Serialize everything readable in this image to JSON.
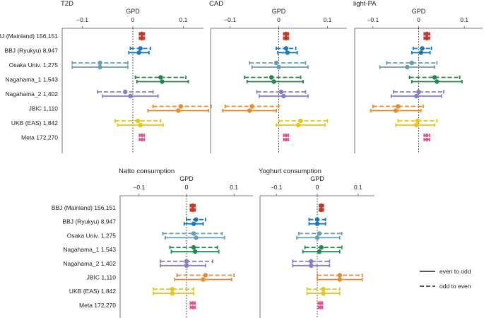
{
  "chart_data": {
    "type": "forest",
    "axis_label": "GPD",
    "row_labels": [
      "BBJ (Mainland) 156,151",
      "BBJ (Ryukyu) 8,947",
      "Osaka Univ. 1,275",
      "Nagahama_1 1,543",
      "Nagahama_2 1,402",
      "JBIC 1,110",
      "UKB (EAS) 1,842",
      "Meta 172,270"
    ],
    "colors": [
      "#c0392b",
      "#1f78b4",
      "#6a9db5",
      "#23864f",
      "#8b7cc4",
      "#e88a2e",
      "#e6c619",
      "#e8508f"
    ],
    "xlim": [
      -0.14,
      0.14
    ],
    "ticks": [
      -0.1,
      0,
      0.1
    ],
    "tick_labels": [
      "−0.1",
      "0",
      "0.1"
    ],
    "legend": {
      "position": "bottom-right",
      "entries": [
        {
          "label": "even to odd",
          "style": "solid"
        },
        {
          "label": "odd to even",
          "style": "dashed"
        }
      ]
    },
    "panels": [
      {
        "title": "T2D",
        "rows": [
          {
            "dashed": [
              0.018,
              0.013,
              0.023
            ],
            "solid": [
              0.018,
              0.013,
              0.023
            ]
          },
          {
            "dashed": [
              0.015,
              -0.005,
              0.035
            ],
            "solid": [
              0.012,
              -0.008,
              0.032
            ]
          },
          {
            "dashed": [
              -0.065,
              -0.12,
              -0.01
            ],
            "solid": [
              -0.065,
              -0.12,
              -0.01
            ]
          },
          {
            "dashed": [
              0.055,
              0.005,
              0.105
            ],
            "solid": [
              0.058,
              0.008,
              0.11
            ]
          },
          {
            "dashed": [
              -0.015,
              -0.07,
              0.04
            ],
            "solid": [
              -0.005,
              -0.06,
              0.05
            ]
          },
          {
            "dashed": [
              0.095,
              0.04,
              0.155
            ],
            "solid": [
              0.09,
              0.03,
              0.15
            ]
          },
          {
            "dashed": [
              0.01,
              -0.035,
              0.055
            ],
            "solid": [
              0.015,
              -0.03,
              0.06
            ]
          },
          {
            "dashed": [
              0.018,
              0.013,
              0.023
            ],
            "solid": [
              0.018,
              0.013,
              0.023
            ]
          }
        ]
      },
      {
        "title": "CAD",
        "rows": [
          {
            "dashed": [
              0.015,
              0.01,
              0.02
            ],
            "solid": [
              0.015,
              0.01,
              0.02
            ]
          },
          {
            "dashed": [
              0.015,
              -0.005,
              0.035
            ],
            "solid": [
              0.018,
              -0.002,
              0.038
            ]
          },
          {
            "dashed": [
              -0.005,
              -0.06,
              0.055
            ],
            "solid": [
              0.0,
              -0.055,
              0.06
            ]
          },
          {
            "dashed": [
              -0.015,
              -0.07,
              0.045
            ],
            "solid": [
              -0.01,
              -0.065,
              0.05
            ]
          },
          {
            "dashed": [
              0.005,
              -0.045,
              0.055
            ],
            "solid": [
              0.01,
              -0.04,
              0.06
            ]
          },
          {
            "dashed": [
              -0.055,
              -0.11,
              0.0
            ],
            "solid": [
              -0.06,
              -0.115,
              -0.005
            ]
          },
          {
            "dashed": [
              0.045,
              0.0,
              0.1
            ],
            "solid": [
              0.04,
              -0.005,
              0.095
            ]
          },
          {
            "dashed": [
              0.015,
              0.01,
              0.02
            ],
            "solid": [
              0.015,
              0.01,
              0.02
            ]
          }
        ]
      },
      {
        "title": "light-PA",
        "rows": [
          {
            "dashed": [
              0.018,
              0.012,
              0.024
            ],
            "solid": [
              0.018,
              0.012,
              0.024
            ]
          },
          {
            "dashed": [
              0.008,
              -0.012,
              0.028
            ],
            "solid": [
              0.005,
              -0.015,
              0.025
            ]
          },
          {
            "dashed": [
              -0.015,
              -0.07,
              0.04
            ],
            "solid": [
              -0.025,
              -0.085,
              0.035
            ]
          },
          {
            "dashed": [
              0.035,
              -0.02,
              0.09
            ],
            "solid": [
              0.04,
              -0.015,
              0.095
            ]
          },
          {
            "dashed": [
              0.0,
              -0.055,
              0.055
            ],
            "solid": [
              -0.005,
              -0.06,
              0.05
            ]
          },
          {
            "dashed": [
              -0.045,
              -0.1,
              0.01
            ],
            "solid": [
              -0.05,
              -0.105,
              0.005
            ]
          },
          {
            "dashed": [
              -0.002,
              -0.045,
              0.04
            ],
            "solid": [
              -0.005,
              -0.05,
              0.035
            ]
          },
          {
            "dashed": [
              0.018,
              0.012,
              0.024
            ],
            "solid": [
              0.018,
              0.012,
              0.024
            ]
          }
        ]
      },
      {
        "title": "Natto consumption",
        "rows": [
          {
            "dashed": [
              0.013,
              0.008,
              0.018
            ],
            "solid": [
              0.013,
              0.008,
              0.018
            ]
          },
          {
            "dashed": [
              0.02,
              0.0,
              0.04
            ],
            "solid": [
              0.015,
              -0.005,
              0.035
            ]
          },
          {
            "dashed": [
              0.015,
              -0.05,
              0.075
            ],
            "solid": [
              0.02,
              -0.045,
              0.08
            ]
          },
          {
            "dashed": [
              0.015,
              -0.035,
              0.065
            ],
            "solid": [
              0.018,
              -0.032,
              0.068
            ]
          },
          {
            "dashed": [
              0.0,
              -0.055,
              0.055
            ],
            "solid": [
              0.0,
              -0.055,
              0.04
            ]
          },
          {
            "dashed": [
              0.04,
              -0.02,
              0.1
            ],
            "solid": [
              0.035,
              -0.025,
              0.095
            ]
          },
          {
            "dashed": [
              -0.03,
              -0.07,
              0.015
            ],
            "solid": [
              -0.03,
              -0.07,
              0.015
            ]
          },
          {
            "dashed": [
              0.013,
              0.008,
              0.018
            ],
            "solid": [
              0.013,
              0.008,
              0.018
            ]
          }
        ]
      },
      {
        "title": "Yoghurt consumption",
        "rows": [
          {
            "dashed": [
              0.01,
              0.005,
              0.015
            ],
            "solid": [
              0.01,
              0.005,
              0.015
            ]
          },
          {
            "dashed": [
              0.0,
              -0.02,
              0.02
            ],
            "solid": [
              0.0,
              -0.02,
              0.02
            ]
          },
          {
            "dashed": [
              0.005,
              -0.045,
              0.06
            ],
            "solid": [
              0.0,
              -0.05,
              0.055
            ]
          },
          {
            "dashed": [
              0.01,
              -0.03,
              0.06
            ],
            "solid": [
              0.005,
              -0.035,
              0.055
            ]
          },
          {
            "dashed": [
              -0.015,
              -0.06,
              0.03
            ],
            "solid": [
              -0.015,
              -0.06,
              0.03
            ]
          },
          {
            "dashed": [
              0.055,
              0.0,
              0.11
            ],
            "solid": [
              0.055,
              0.0,
              0.11
            ]
          },
          {
            "dashed": [
              0.015,
              -0.025,
              0.055
            ],
            "solid": [
              0.015,
              -0.025,
              0.055
            ]
          },
          {
            "dashed": [
              0.008,
              0.003,
              0.013
            ],
            "solid": [
              0.008,
              0.003,
              0.013
            ]
          }
        ]
      }
    ]
  }
}
